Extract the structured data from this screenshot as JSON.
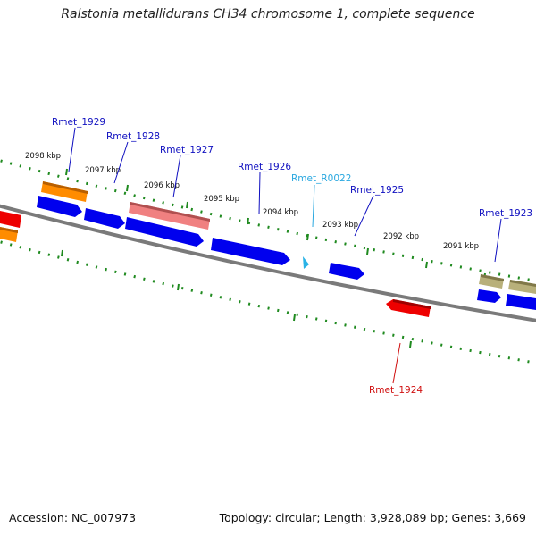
{
  "title": "Ralstonia metallidurans CH34 chromosome 1, complete sequence",
  "footer": {
    "accession": "Accession: NC_007973",
    "summary": "Topology: circular; Length: 3,928,089 bp; Genes: 3,669"
  },
  "colors": {
    "backbone": "#7a7a7a",
    "tick": "#1f8a1f",
    "cds_forward": "#0000ee",
    "cds_reverse": "#ee0000",
    "rna": "#2ab3e6",
    "label_blue": "#1010c0",
    "label_red": "#d01010",
    "label_cyan": "#2aa8e0",
    "orange": "#ff8c00",
    "pink": "#f08080",
    "khaki": "#b8b07a"
  },
  "scale_labels": [
    "2098 kbp",
    "2097 kbp",
    "2096 kbp",
    "2095 kbp",
    "2094 kbp",
    "2093 kbp",
    "2092 kbp",
    "2091 kbp"
  ],
  "gene_labels": [
    {
      "text": "Rmet_1929",
      "color": "label_blue"
    },
    {
      "text": "Rmet_1928",
      "color": "label_blue"
    },
    {
      "text": "Rmet_1927",
      "color": "label_blue"
    },
    {
      "text": "Rmet_1926",
      "color": "label_blue"
    },
    {
      "text": "Rmet_R0022",
      "color": "label_cyan"
    },
    {
      "text": "Rmet_1925",
      "color": "label_blue"
    },
    {
      "text": "Rmet_1923",
      "color": "label_blue"
    },
    {
      "text": "Rmet_1924",
      "color": "label_red"
    }
  ]
}
